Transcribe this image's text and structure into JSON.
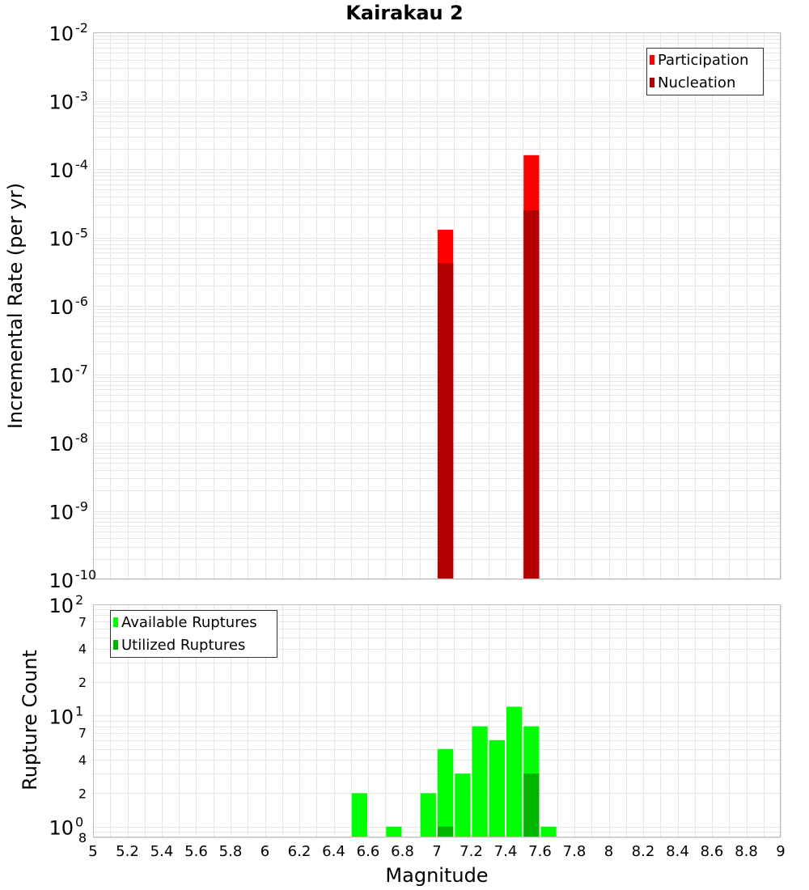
{
  "chart_data": [
    {
      "type": "bar",
      "title": "Kairakau 2",
      "xlabel": "",
      "ylabel": "Incremental Rate (per yr)",
      "yscale": "log",
      "ylim": [
        1e-10,
        0.01
      ],
      "xlim": [
        5,
        9
      ],
      "grid": true,
      "legend_position": "top-right",
      "legend": [
        "Participation",
        "Nucleation"
      ],
      "colors": {
        "Participation": "#ff0000",
        "Nucleation": "#b40000"
      },
      "y_tick_labels": [
        {
          "base": "10",
          "exp": "-2"
        },
        {
          "base": "10",
          "exp": "-3"
        },
        {
          "base": "10",
          "exp": "-4"
        },
        {
          "base": "10",
          "exp": "-5"
        },
        {
          "base": "10",
          "exp": "-6"
        },
        {
          "base": "10",
          "exp": "-7"
        },
        {
          "base": "10",
          "exp": "-8"
        },
        {
          "base": "10",
          "exp": "-9"
        },
        {
          "base": "10",
          "exp": "-10"
        }
      ],
      "series": [
        {
          "name": "Participation",
          "x": [
            7.05,
            7.55
          ],
          "values": [
            1.3e-05,
            0.00016
          ]
        },
        {
          "name": "Nucleation",
          "x": [
            7.05,
            7.55
          ],
          "values": [
            4.2e-06,
            2.5e-05
          ]
        }
      ]
    },
    {
      "type": "bar",
      "xlabel": "Magnitude",
      "ylabel": "Rupture Count",
      "yscale": "log",
      "ylim": [
        0.8,
        100
      ],
      "xlim": [
        5,
        9
      ],
      "grid": true,
      "legend_position": "top-left",
      "legend": [
        "Available Ruptures",
        "Utilized Ruptures"
      ],
      "colors": {
        "Available Ruptures": "#00ff00",
        "Utilized Ruptures": "#00b400"
      },
      "x_ticks": [
        "5",
        "5.2",
        "5.4",
        "5.6",
        "5.8",
        "6",
        "6.2",
        "6.4",
        "6.6",
        "6.8",
        "7",
        "7.2",
        "7.4",
        "7.6",
        "7.8",
        "8",
        "8.2",
        "8.4",
        "8.6",
        "8.8",
        "9"
      ],
      "y_tick_labels": [
        {
          "base": "10",
          "exp": "2"
        },
        {
          "base": "7",
          "exp": ""
        },
        {
          "base": "4",
          "exp": ""
        },
        {
          "base": "2",
          "exp": ""
        },
        {
          "base": "10",
          "exp": "1"
        },
        {
          "base": "7",
          "exp": ""
        },
        {
          "base": "4",
          "exp": ""
        },
        {
          "base": "2",
          "exp": ""
        },
        {
          "base": "10",
          "exp": "0"
        },
        {
          "base": "8",
          "exp": ""
        }
      ],
      "series": [
        {
          "name": "Available Ruptures",
          "x": [
            6.55,
            6.75,
            6.95,
            7.05,
            7.15,
            7.25,
            7.35,
            7.45,
            7.55,
            7.65
          ],
          "values": [
            2,
            1,
            2,
            5,
            3,
            8,
            6,
            12,
            8,
            1
          ]
        },
        {
          "name": "Utilized Ruptures",
          "x": [
            7.05,
            7.55
          ],
          "values": [
            1,
            3
          ]
        }
      ]
    }
  ]
}
